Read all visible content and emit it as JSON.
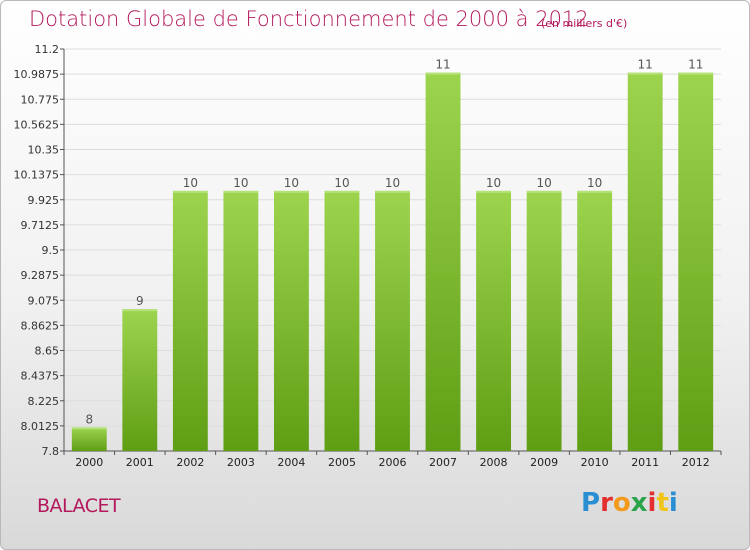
{
  "title": "Dotation Globale de Fonctionnement de 2000 à 2012",
  "subtitle": "(en milliers d'€)",
  "commune": "BALACET",
  "logo": "Proxiti",
  "chart_data": {
    "type": "bar",
    "title": "Dotation Globale de Fonctionnement de 2000 à 2012",
    "subtitle": "(en milliers d'€)",
    "categories": [
      "2000",
      "2001",
      "2002",
      "2003",
      "2004",
      "2005",
      "2006",
      "2007",
      "2008",
      "2009",
      "2010",
      "2011",
      "2012"
    ],
    "values": [
      8,
      9,
      10,
      10,
      10,
      10,
      10,
      11,
      10,
      10,
      10,
      11,
      11
    ],
    "value_labels": [
      "8",
      "9",
      "10",
      "10",
      "10",
      "10",
      "10",
      "11",
      "10",
      "10",
      "10",
      "11",
      "11"
    ],
    "ylim": [
      7.8,
      11.2
    ],
    "y_ticks": [
      "7.8",
      "8.0125",
      "8.225",
      "8.4375",
      "8.65",
      "8.8625",
      "9.075",
      "9.2875",
      "9.5",
      "9.7125",
      "9.925",
      "10.1375",
      "10.35",
      "10.5625",
      "10.775",
      "10.9875",
      "11.2"
    ],
    "grid": true,
    "colors": {
      "bar_top": "#9dd44e",
      "bar_bottom": "#5f9e14",
      "title": "#b3195c",
      "grid": "#dddddd"
    }
  }
}
